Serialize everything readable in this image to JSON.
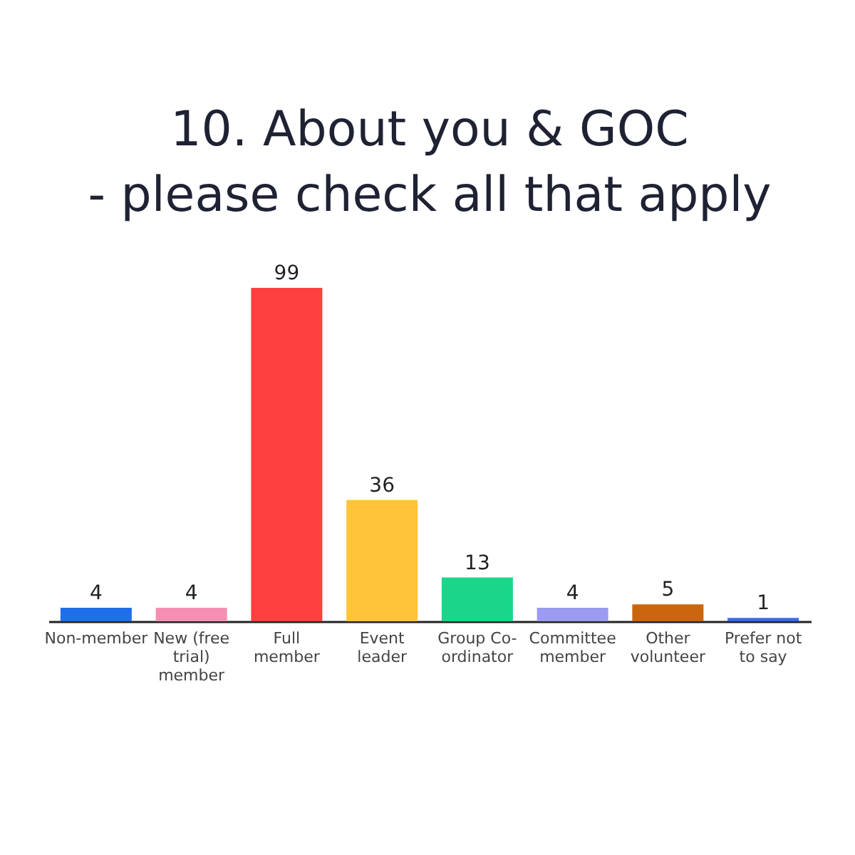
{
  "chart_data": {
    "type": "bar",
    "title": "10. About you & GOC\n- please check all that apply",
    "categories": [
      "Non-member",
      "New (free trial) member",
      "Full member",
      "Event leader",
      "Group Co-ordinator",
      "Committee member",
      "Other volunteer",
      "Prefer not to say"
    ],
    "values": [
      4,
      4,
      99,
      36,
      13,
      4,
      5,
      1
    ],
    "colors": [
      "#1f6fe8",
      "#f58fb3",
      "#ff4040",
      "#ffc43a",
      "#19d68a",
      "#9b9bf0",
      "#c9660e",
      "#3a6fd6"
    ],
    "data_labels": true,
    "grid": false
  }
}
